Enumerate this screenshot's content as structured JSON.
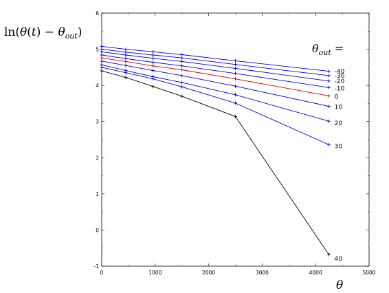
{
  "chart_data": {
    "type": "line",
    "ylabel": "ln(θ(t) − θ_out)",
    "xlabel": "θ",
    "legend_title": "θ_out =",
    "xlim": [
      0,
      5000
    ],
    "ylim": [
      -1,
      6
    ],
    "x_ticks": [
      "0",
      "1000",
      "2000",
      "3000",
      "4000",
      "5000"
    ],
    "y_ticks": [
      "-1",
      "0",
      "1",
      "2",
      "3",
      "4",
      "5",
      "6"
    ],
    "series": [
      {
        "name": "-40",
        "color": "#0000cc",
        "x": [
          0,
          450,
          960,
          1500,
          2500,
          4250
        ],
        "y": [
          5.08,
          5.0,
          4.93,
          4.85,
          4.68,
          4.39
        ]
      },
      {
        "name": "-30",
        "color": "#0000cc",
        "x": [
          0,
          450,
          960,
          1500,
          2500,
          4250
        ],
        "y": [
          5.0,
          4.92,
          4.84,
          4.76,
          4.58,
          4.27
        ]
      },
      {
        "name": "-20",
        "color": "#0000cc",
        "x": [
          0,
          450,
          960,
          1500,
          2500,
          4250
        ],
        "y": [
          4.93,
          4.84,
          4.75,
          4.66,
          4.47,
          4.12
        ]
      },
      {
        "name": "-10",
        "color": "#0000cc",
        "x": [
          0,
          450,
          960,
          1500,
          2500,
          4250
        ],
        "y": [
          4.84,
          4.74,
          4.64,
          4.54,
          4.33,
          3.94
        ]
      },
      {
        "name": "0",
        "color": "#cc0000",
        "x": [
          0,
          450,
          960,
          1500,
          2500,
          4250
        ],
        "y": [
          4.76,
          4.66,
          4.54,
          4.43,
          4.18,
          3.71
        ]
      },
      {
        "name": "10",
        "color": "#0000cc",
        "x": [
          0,
          450,
          960,
          1500,
          2500,
          4250
        ],
        "y": [
          4.67,
          4.55,
          4.41,
          4.27,
          3.98,
          3.42
        ]
      },
      {
        "name": "20",
        "color": "#0000cc",
        "x": [
          0,
          450,
          960,
          1500,
          2500,
          4250
        ],
        "y": [
          4.57,
          4.41,
          4.24,
          4.08,
          3.74,
          3.01
        ]
      },
      {
        "name": "30",
        "color": "#0000cc",
        "x": [
          0,
          450,
          960,
          1500,
          2500,
          4250
        ],
        "y": [
          4.5,
          4.35,
          4.18,
          3.96,
          3.51,
          2.36
        ]
      },
      {
        "name": "40",
        "color": "#000000",
        "x": [
          0,
          450,
          960,
          1500,
          2500,
          4250
        ],
        "y": [
          4.4,
          4.22,
          3.97,
          3.7,
          3.14,
          -0.68
        ]
      }
    ]
  }
}
